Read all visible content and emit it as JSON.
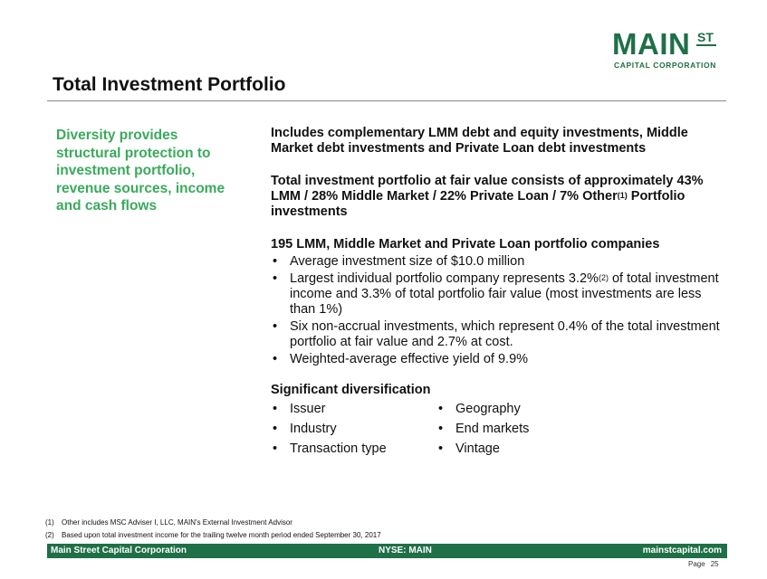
{
  "logo": {
    "main": "MAIN",
    "superscript": "ST",
    "subtitle": "CAPITAL CORPORATION"
  },
  "title": "Total Investment Portfolio",
  "sidebar": {
    "text": "Diversity provides structural protection to investment portfolio, revenue sources, income and cash flows"
  },
  "content": {
    "para1": "Includes complementary LMM debt and equity investments, Middle Market debt investments and Private Loan debt investments",
    "para2_before": "Total investment portfolio at fair value consists of approximately 43% LMM / 28% Middle Market / 22% Private Loan / 7% Other",
    "para2_sup": "(1)",
    "para2_after": " Portfolio investments",
    "companies_heading": "195 LMM, Middle Market and Private Loan portfolio companies",
    "bullet_symbol": "•",
    "bullets": [
      {
        "text": "Average investment size of $10.0 million"
      },
      {
        "before": "Largest individual portfolio company represents 3.2%",
        "sup": "(2)",
        "after": " of total investment income and 3.3% of total portfolio fair value (most investments are less than 1%)"
      },
      {
        "text": "Six non-accrual investments, which represent 0.4% of the total investment portfolio at fair value and 2.7% at cost."
      },
      {
        "text": "Weighted-average effective yield of 9.9%"
      }
    ],
    "diversification_heading": "Significant diversification",
    "diversification": [
      "Issuer",
      "Geography",
      "Industry",
      "End markets",
      "Transaction type",
      "Vintage"
    ]
  },
  "footnotes": [
    {
      "num": "(1)",
      "text": "Other includes MSC Adviser I, LLC, MAIN's External Investment Advisor"
    },
    {
      "num": "(2)",
      "text": "Based upon total investment income for the trailing twelve month period ended September 30, 2017"
    }
  ],
  "footer": {
    "left": "Main Street Capital Corporation",
    "center": "NYSE: MAIN",
    "right": "mainstcapital.com"
  },
  "page": {
    "label": "Page",
    "number": "25"
  },
  "colors": {
    "brand_green": "#1f6f47",
    "accent_green": "#3aaa5c"
  }
}
